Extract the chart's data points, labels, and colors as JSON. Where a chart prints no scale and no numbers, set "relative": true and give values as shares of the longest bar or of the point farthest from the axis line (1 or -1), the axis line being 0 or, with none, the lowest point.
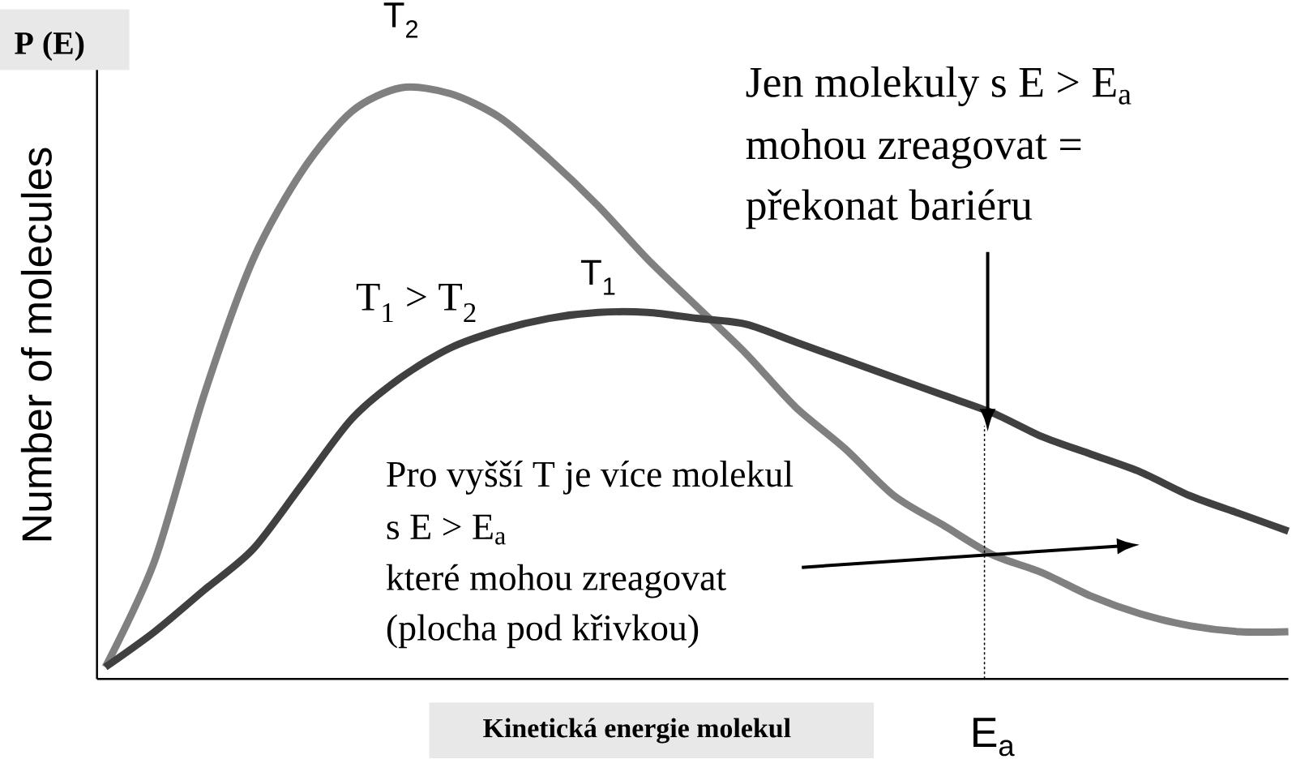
{
  "chart_data": {
    "type": "line",
    "relative": true,
    "title": "P (E)",
    "ylabel": "Number of molecules",
    "xlabel": "Kinetická energie molekul",
    "categories": [
      null,
      null,
      null,
      null,
      null,
      null,
      null,
      null,
      null,
      null,
      null,
      null,
      null,
      null,
      null,
      null,
      null,
      null,
      null,
      null,
      null,
      null,
      null,
      null,
      null
    ],
    "series": [
      {
        "name": "T$_{2}$",
        "color": "#808080",
        "values": [
          0.02,
          0.2,
          0.48,
          0.71,
          0.86,
          0.96,
          1.0,
          0.99,
          0.95,
          0.88,
          0.8,
          0.71,
          0.63,
          0.55,
          0.46,
          0.39,
          0.31,
          0.26,
          0.21,
          0.18,
          0.14,
          0.11,
          0.09,
          0.08,
          0.08
        ]
      },
      {
        "name": "T$_{1}$",
        "color": "#404040",
        "values": [
          0.02,
          0.08,
          0.15,
          0.22,
          0.33,
          0.44,
          0.51,
          0.56,
          0.59,
          0.61,
          0.62,
          0.62,
          0.61,
          0.6,
          0.57,
          0.54,
          0.51,
          0.48,
          0.45,
          0.41,
          0.38,
          0.35,
          0.31,
          0.28,
          0.25
        ]
      }
    ],
    "annotations": [
      "E$_{a}$",
      "T$_{1}$ > T$_{2}$",
      "Jen molekuly s E > E$_{a}$",
      "mohou zreagovat =",
      "překonat bariéru",
      "Pro vyšší T je více molekul",
      "s E > E$_{a}$",
      "které mohou zreagovat",
      "(plocha pod křivkou)"
    ],
    "marker": "none",
    "line_style": "solid"
  }
}
